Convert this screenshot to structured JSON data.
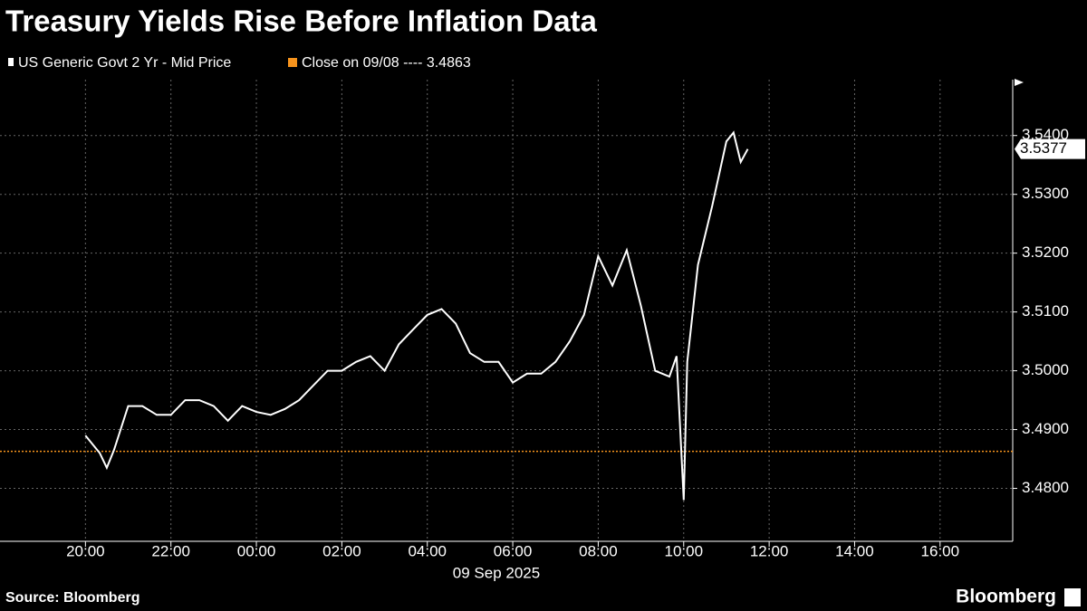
{
  "chart_data": {
    "type": "line",
    "title": "Treasury Yields Rise Before Inflation Data",
    "x_label": "09 Sep 2025",
    "source": "Source: Bloomberg",
    "brand": "Bloomberg",
    "x": [
      "2025-09-08T20:00",
      "2025-09-08T20:20",
      "2025-09-08T20:30",
      "2025-09-08T20:40",
      "2025-09-08T21:00",
      "2025-09-08T21:20",
      "2025-09-08T21:40",
      "2025-09-08T22:00",
      "2025-09-08T22:20",
      "2025-09-08T22:40",
      "2025-09-08T23:00",
      "2025-09-08T23:20",
      "2025-09-08T23:40",
      "2025-09-09T00:00",
      "2025-09-09T00:20",
      "2025-09-09T00:40",
      "2025-09-09T01:00",
      "2025-09-09T01:20",
      "2025-09-09T01:40",
      "2025-09-09T02:00",
      "2025-09-09T02:20",
      "2025-09-09T02:40",
      "2025-09-09T03:00",
      "2025-09-09T03:20",
      "2025-09-09T03:40",
      "2025-09-09T04:00",
      "2025-09-09T04:20",
      "2025-09-09T04:40",
      "2025-09-09T05:00",
      "2025-09-09T05:20",
      "2025-09-09T05:40",
      "2025-09-09T06:00",
      "2025-09-09T06:20",
      "2025-09-09T06:40",
      "2025-09-09T07:00",
      "2025-09-09T07:20",
      "2025-09-09T07:40",
      "2025-09-09T08:00",
      "2025-09-09T08:20",
      "2025-09-09T08:40",
      "2025-09-09T09:00",
      "2025-09-09T09:20",
      "2025-09-09T09:40",
      "2025-09-09T09:50",
      "2025-09-09T10:00",
      "2025-09-09T10:05",
      "2025-09-09T10:20",
      "2025-09-09T10:40",
      "2025-09-09T11:00",
      "2025-09-09T11:10",
      "2025-09-09T11:20",
      "2025-09-09T11:30"
    ],
    "series": [
      {
        "name": "US Generic Govt 2 Yr - Mid Price",
        "color": "#ffffff",
        "values": [
          3.489,
          3.486,
          3.4835,
          3.4865,
          3.494,
          3.494,
          3.4925,
          3.4925,
          3.495,
          3.495,
          3.494,
          3.4915,
          3.494,
          3.493,
          3.4925,
          3.4935,
          3.495,
          3.4975,
          3.5,
          3.5,
          3.5015,
          3.5025,
          3.5,
          3.5045,
          3.507,
          3.5095,
          3.5105,
          3.508,
          3.503,
          3.5015,
          3.5015,
          3.498,
          3.4995,
          3.4995,
          3.5015,
          3.505,
          3.5095,
          3.5195,
          3.5145,
          3.5205,
          3.511,
          3.5,
          3.499,
          3.5025,
          3.478,
          3.5015,
          3.518,
          3.528,
          3.539,
          3.5405,
          3.5355,
          3.5377
        ]
      }
    ],
    "reference": {
      "label": "Close on 09/08 ---- 3.4863",
      "value": 3.4863,
      "color": "#f7941d"
    },
    "xlim": [
      "2025-09-08T18:00",
      "2025-09-09T17:42"
    ],
    "xticks": [
      {
        "value": "2025-09-08T20:00",
        "label": "20:00"
      },
      {
        "value": "2025-09-08T22:00",
        "label": "22:00"
      },
      {
        "value": "2025-09-09T00:00",
        "label": "00:00"
      },
      {
        "value": "2025-09-09T02:00",
        "label": "02:00"
      },
      {
        "value": "2025-09-09T04:00",
        "label": "04:00"
      },
      {
        "value": "2025-09-09T06:00",
        "label": "06:00"
      },
      {
        "value": "2025-09-09T08:00",
        "label": "08:00"
      },
      {
        "value": "2025-09-09T10:00",
        "label": "10:00"
      },
      {
        "value": "2025-09-09T12:00",
        "label": "12:00"
      },
      {
        "value": "2025-09-09T14:00",
        "label": "14:00"
      },
      {
        "value": "2025-09-09T16:00",
        "label": "16:00"
      }
    ],
    "ylim": [
      3.471,
      3.5495
    ],
    "yticks": [
      {
        "value": 3.48,
        "label": "3.4800"
      },
      {
        "value": 3.49,
        "label": "3.4900"
      },
      {
        "value": 3.5,
        "label": "3.5000"
      },
      {
        "value": 3.51,
        "label": "3.5100"
      },
      {
        "value": 3.52,
        "label": "3.5200"
      },
      {
        "value": 3.53,
        "label": "3.5300"
      },
      {
        "value": 3.54,
        "label": "3.5400"
      }
    ],
    "grid": true
  }
}
